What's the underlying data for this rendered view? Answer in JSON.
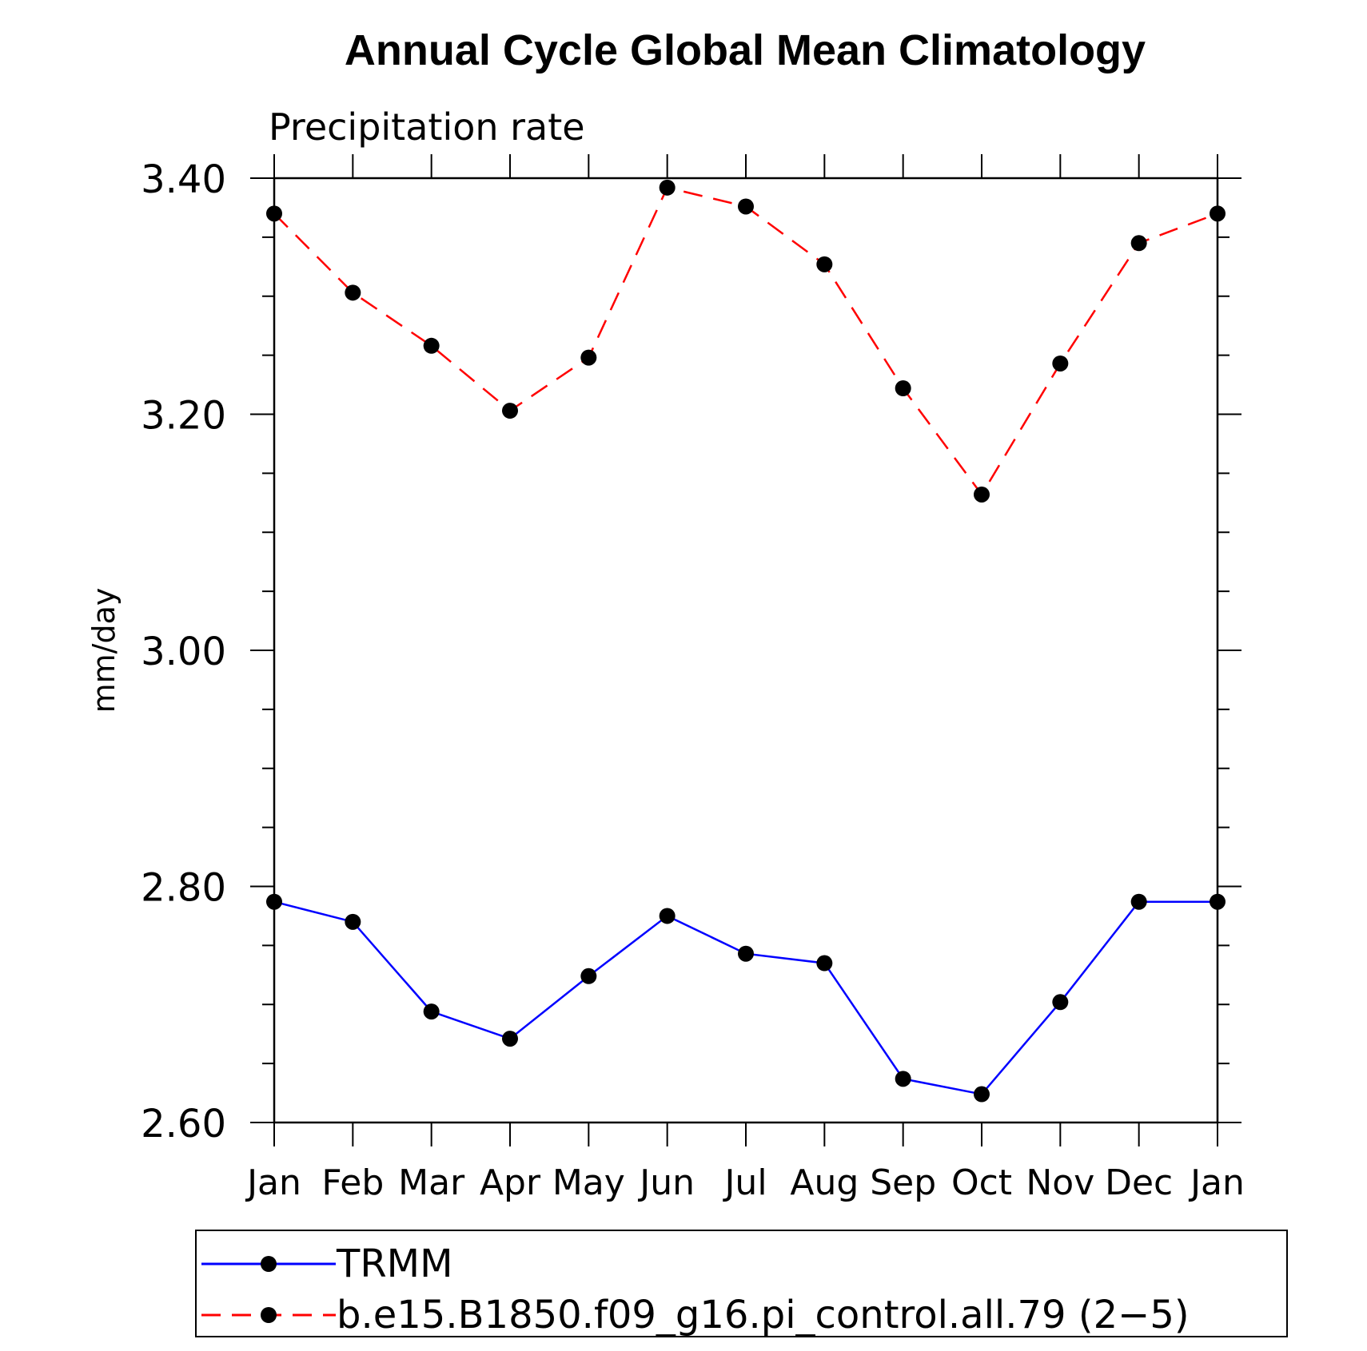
{
  "chart_data": {
    "type": "line",
    "title": "Annual Cycle Global Mean Climatology",
    "subtitle": "Precipitation rate",
    "xlabel": "",
    "ylabel": "mm/day",
    "categories": [
      "Jan",
      "Feb",
      "Mar",
      "Apr",
      "May",
      "Jun",
      "Jul",
      "Aug",
      "Sep",
      "Oct",
      "Nov",
      "Dec",
      "Jan"
    ],
    "ylim": [
      2.6,
      3.4
    ],
    "yticks": [
      2.6,
      2.8,
      3.0,
      3.2,
      3.4
    ],
    "ytick_labels": [
      "2.60",
      "2.80",
      "3.00",
      "3.20",
      "3.40"
    ],
    "yminor_step": 0.05,
    "grid": false,
    "legend_position": "bottom",
    "series": [
      {
        "name": "TRMM",
        "color": "#0000ff",
        "linestyle": "solid",
        "marker": "circle",
        "values": [
          2.787,
          2.77,
          2.694,
          2.671,
          2.724,
          2.775,
          2.743,
          2.735,
          2.637,
          2.624,
          2.702,
          2.787,
          2.787
        ]
      },
      {
        "name": "b.e15.B1850.f09_g16.pi_control.all.79 (2−5)",
        "color": "#ff0000",
        "linestyle": "dashed",
        "marker": "circle",
        "values": [
          3.37,
          3.303,
          3.258,
          3.203,
          3.248,
          3.392,
          3.376,
          3.327,
          3.222,
          3.132,
          3.243,
          3.345,
          3.37
        ]
      }
    ]
  }
}
